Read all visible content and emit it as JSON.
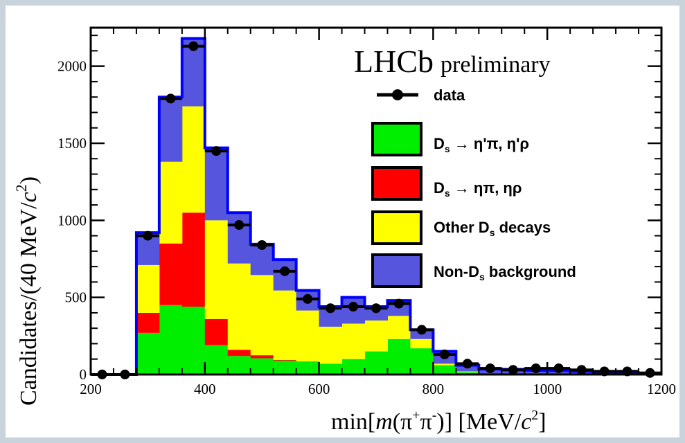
{
  "chart_data": {
    "type": "bar",
    "stacked": true,
    "xlabel_parts": [
      "min[",
      "m",
      "(π",
      "+",
      "π",
      "-",
      ")] [MeV/",
      "c",
      "2",
      "]"
    ],
    "ylabel_parts": [
      "Candidates/(40 MeV/",
      "c",
      "2",
      ")"
    ],
    "xlim": [
      200,
      1200
    ],
    "ylim": [
      0,
      2250
    ],
    "xticks": [
      200,
      400,
      600,
      800,
      1000,
      1200
    ],
    "yticks": [
      0,
      500,
      1000,
      1500,
      2000
    ],
    "bin_edges": [
      200,
      240,
      280,
      320,
      360,
      400,
      440,
      480,
      520,
      560,
      600,
      640,
      680,
      720,
      760,
      800,
      840,
      880,
      920,
      960,
      1000,
      1040,
      1080,
      1120,
      1160,
      1200
    ],
    "series": [
      {
        "name": "D_s → η'π, η'ρ",
        "color": "#00ee00",
        "values": [
          0,
          0,
          270,
          450,
          440,
          190,
          120,
          105,
          90,
          85,
          70,
          100,
          150,
          230,
          170,
          60,
          15,
          5,
          3,
          2,
          1,
          0,
          0,
          0,
          0
        ]
      },
      {
        "name": "D_s → ηπ, ηρ",
        "color": "#ff0000",
        "values": [
          0,
          0,
          130,
          400,
          610,
          170,
          40,
          20,
          5,
          0,
          0,
          0,
          0,
          0,
          0,
          0,
          0,
          0,
          0,
          0,
          0,
          0,
          0,
          0,
          0
        ]
      },
      {
        "name": "Other D_s decays",
        "color": "#ffff00",
        "values": [
          0,
          0,
          310,
          530,
          690,
          640,
          560,
          520,
          450,
          330,
          240,
          230,
          200,
          150,
          60,
          10,
          5,
          0,
          0,
          0,
          0,
          0,
          0,
          0,
          0
        ]
      },
      {
        "name": "Non-D_s background",
        "color": "#5555dd",
        "values": [
          0,
          0,
          210,
          420,
          440,
          470,
          330,
          200,
          200,
          130,
          130,
          170,
          90,
          100,
          60,
          80,
          40,
          30,
          30,
          25,
          25,
          20,
          15,
          10,
          5
        ]
      }
    ],
    "data_points": {
      "name": "data",
      "x": [
        220,
        260,
        300,
        340,
        380,
        420,
        460,
        500,
        540,
        580,
        620,
        660,
        700,
        740,
        780,
        820,
        860,
        900,
        940,
        980,
        1020,
        1060,
        1100,
        1140,
        1180
      ],
      "y": [
        0,
        0,
        900,
        1790,
        2130,
        1450,
        970,
        840,
        670,
        490,
        430,
        440,
        430,
        460,
        290,
        130,
        70,
        40,
        30,
        40,
        40,
        30,
        20,
        20,
        10
      ]
    },
    "total_line_color": "#0000ff",
    "legend_placement": "top-right"
  },
  "legend": [
    {
      "parts": [
        "data"
      ]
    },
    {
      "parts": [
        "D",
        "s",
        " → η'π, η'ρ"
      ]
    },
    {
      "parts": [
        "D",
        "s",
        " → ηπ, ηρ"
      ]
    },
    {
      "parts": [
        "Other D",
        "s",
        " decays"
      ]
    },
    {
      "parts": [
        "Non-D",
        "s",
        " background"
      ]
    }
  ],
  "brand": {
    "main": "LHCb",
    "sub": "preliminary"
  }
}
